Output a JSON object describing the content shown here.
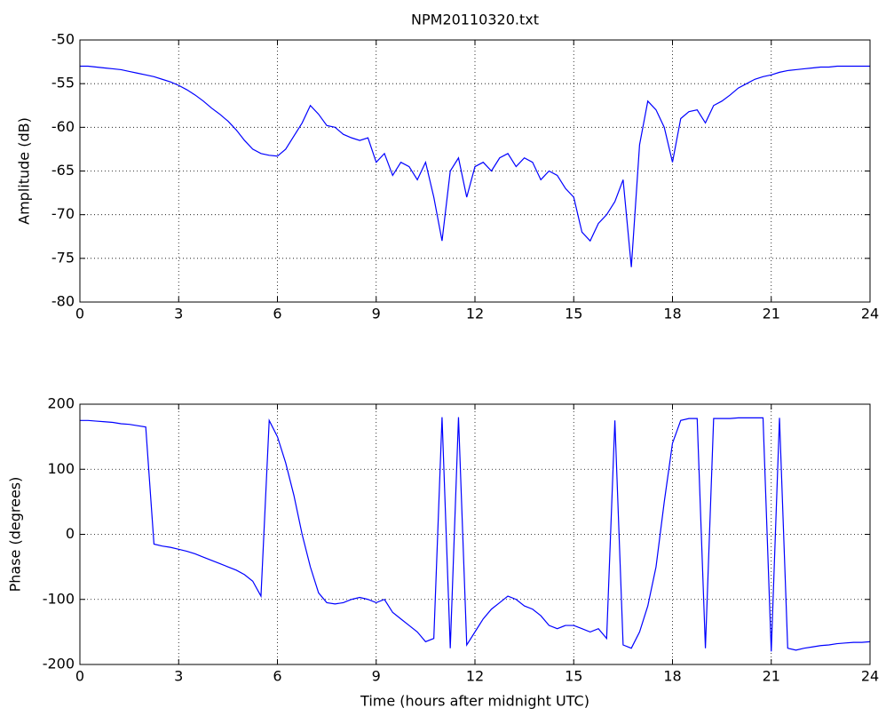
{
  "chart_data": [
    {
      "type": "line",
      "title": "NPM20110320.txt",
      "ylabel": "Amplitude (dB)",
      "x": [
        0,
        0.25,
        0.5,
        0.75,
        1,
        1.25,
        1.5,
        1.75,
        2,
        2.25,
        2.5,
        2.75,
        3,
        3.25,
        3.5,
        3.75,
        4,
        4.25,
        4.5,
        4.75,
        5,
        5.25,
        5.5,
        5.75,
        6,
        6.25,
        6.5,
        6.75,
        7,
        7.25,
        7.5,
        7.75,
        8,
        8.25,
        8.5,
        8.75,
        9,
        9.25,
        9.5,
        9.75,
        10,
        10.25,
        10.5,
        10.75,
        11,
        11.25,
        11.5,
        11.75,
        12,
        12.25,
        12.5,
        12.75,
        13,
        13.25,
        13.5,
        13.75,
        14,
        14.25,
        14.5,
        14.75,
        15,
        15.25,
        15.5,
        15.75,
        16,
        16.25,
        16.5,
        16.75,
        17,
        17.25,
        17.5,
        17.75,
        18,
        18.25,
        18.5,
        18.75,
        19,
        19.25,
        19.5,
        19.75,
        20,
        20.25,
        20.5,
        20.75,
        21,
        21.25,
        21.5,
        21.75,
        22,
        22.25,
        22.5,
        22.75,
        23,
        23.25,
        23.5,
        23.75,
        24
      ],
      "series": [
        {
          "color": "#0000ff",
          "values": [
            -53,
            -53,
            -53.1,
            -53.2,
            -53.3,
            -53.4,
            -53.6,
            -53.8,
            -54,
            -54.2,
            -54.5,
            -54.8,
            -55.2,
            -55.7,
            -56.3,
            -57,
            -57.8,
            -58.5,
            -59.3,
            -60.3,
            -61.5,
            -62.5,
            -63,
            -63.2,
            -63.3,
            -62.5,
            -61,
            -59.5,
            -57.5,
            -58.5,
            -59.8,
            -60,
            -60.8,
            -61.2,
            -61.5,
            -61.2,
            -64,
            -63,
            -65.5,
            -64,
            -64.5,
            -66,
            -64,
            -68,
            -73,
            -65,
            -63.5,
            -68,
            -64.5,
            -64,
            -65,
            -63.5,
            -63,
            -64.5,
            -63.5,
            -64,
            -66,
            -65,
            -65.5,
            -67,
            -68,
            -72,
            -73,
            -71,
            -70,
            -68.5,
            -66,
            -76,
            -62,
            -57,
            -58,
            -60,
            -64,
            -59,
            -58.2,
            -58,
            -59.5,
            -57.5,
            -57,
            -56.3,
            -55.5,
            -55,
            -54.5,
            -54.2,
            -54,
            -53.7,
            -53.5,
            -53.4,
            -53.3,
            -53.2,
            -53.1,
            -53.1,
            -53,
            -53,
            -53,
            -53,
            -53
          ]
        }
      ],
      "xlim": [
        0,
        24
      ],
      "ylim": [
        -80,
        -50
      ],
      "xticks": [
        0,
        3,
        6,
        9,
        12,
        15,
        18,
        21,
        24
      ],
      "yticks": [
        -80,
        -75,
        -70,
        -65,
        -60,
        -55,
        -50
      ],
      "grid": true
    },
    {
      "type": "line",
      "xlabel": "Time (hours after midnight UTC)",
      "ylabel": "Phase (degrees)",
      "x": [
        0,
        0.25,
        0.5,
        0.75,
        1,
        1.25,
        1.5,
        1.75,
        2,
        2.25,
        2.5,
        2.75,
        3,
        3.25,
        3.5,
        3.75,
        4,
        4.25,
        4.5,
        4.75,
        5,
        5.25,
        5.5,
        5.75,
        6,
        6.25,
        6.5,
        6.75,
        7,
        7.25,
        7.5,
        7.75,
        8,
        8.25,
        8.5,
        8.75,
        9,
        9.25,
        9.5,
        9.75,
        10,
        10.25,
        10.5,
        10.75,
        11,
        11.25,
        11.5,
        11.75,
        12,
        12.25,
        12.5,
        12.75,
        13,
        13.25,
        13.5,
        13.75,
        14,
        14.25,
        14.5,
        14.75,
        15,
        15.25,
        15.5,
        15.75,
        16,
        16.25,
        16.5,
        16.75,
        17,
        17.25,
        17.5,
        17.75,
        18,
        18.25,
        18.5,
        18.75,
        19,
        19.25,
        19.5,
        19.75,
        20,
        20.25,
        20.5,
        20.75,
        21,
        21.25,
        21.5,
        21.75,
        22,
        22.25,
        22.5,
        22.75,
        23,
        23.25,
        23.5,
        23.75,
        24
      ],
      "series": [
        {
          "color": "#0000ff",
          "values": [
            175,
            175,
            174,
            173,
            172,
            170,
            169,
            167,
            165,
            -15,
            -18,
            -20,
            -23,
            -26,
            -30,
            -35,
            -40,
            -45,
            -50,
            -55,
            -62,
            -72,
            -95,
            175,
            150,
            110,
            60,
            0,
            -50,
            -90,
            -105,
            -107,
            -105,
            -100,
            -97,
            -100,
            -105,
            -100,
            -120,
            -130,
            -140,
            -150,
            -165,
            -160,
            180,
            -175,
            180,
            -170,
            -150,
            -130,
            -115,
            -105,
            -95,
            -100,
            -110,
            -115,
            -125,
            -140,
            -145,
            -140,
            -140,
            -145,
            -150,
            -145,
            -160,
            175,
            -170,
            -175,
            -150,
            -110,
            -50,
            50,
            140,
            175,
            178,
            178,
            -175,
            178,
            178,
            178,
            179,
            179,
            179,
            179,
            -180,
            179,
            -175,
            -178,
            -175,
            -173,
            -171,
            -170,
            -168,
            -167,
            -166,
            -166,
            -165
          ]
        }
      ],
      "xlim": [
        0,
        24
      ],
      "ylim": [
        -200,
        200
      ],
      "xticks": [
        0,
        3,
        6,
        9,
        12,
        15,
        18,
        21,
        24
      ],
      "yticks": [
        -200,
        -100,
        0,
        100,
        200
      ],
      "grid": true
    }
  ]
}
